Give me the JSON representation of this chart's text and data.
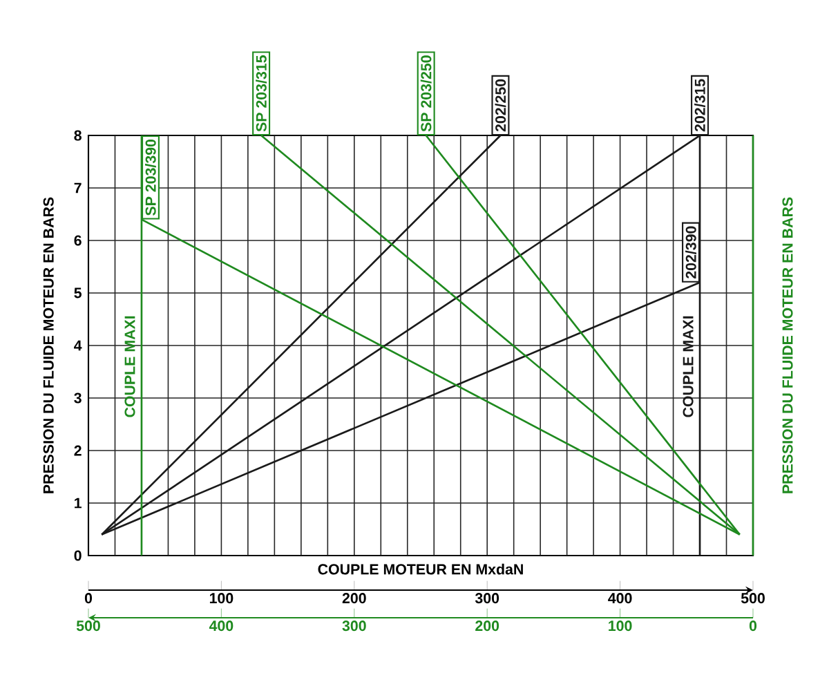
{
  "chart_data": {
    "type": "line",
    "xlabel": "COUPLE MOTEUR EN MxdaN",
    "ylabel": "PRESSION DU FLUIDE MOTEUR EN BARS",
    "y2label": "PRESSION DU FLUIDE MOTEUR EN BARS",
    "xlim": [
      0,
      500
    ],
    "xticks": [
      0,
      100,
      200,
      300,
      400,
      500
    ],
    "x2lim": [
      500,
      0
    ],
    "x2ticks": [
      500,
      400,
      300,
      200,
      100,
      0
    ],
    "ylim": [
      0,
      8
    ],
    "yticks": [
      0,
      1,
      2,
      3,
      4,
      5,
      6,
      7,
      8
    ],
    "grid": true,
    "marker": "none",
    "line_style": "solid",
    "series": [
      {
        "name": "202/250",
        "color": "#1a1a1a",
        "x": [
          10,
          310
        ],
        "values": [
          0.4,
          8
        ]
      },
      {
        "name": "202/315",
        "color": "#1a1a1a",
        "x": [
          10,
          460
        ],
        "values": [
          0.4,
          8
        ]
      },
      {
        "name": "202/390",
        "color": "#1a1a1a",
        "x": [
          10,
          460
        ],
        "values": [
          0.4,
          5.2
        ]
      },
      {
        "name": "SP 203/390",
        "color": "#1f8a1f",
        "axis": "x2",
        "x": [
          460,
          10
        ],
        "values": [
          6.4,
          0.4
        ]
      },
      {
        "name": "SP 203/315",
        "color": "#1f8a1f",
        "axis": "x2",
        "x": [
          370,
          10
        ],
        "values": [
          8,
          0.4
        ]
      },
      {
        "name": "SP 203/250",
        "color": "#1f8a1f",
        "axis": "x2",
        "x": [
          246,
          10
        ],
        "values": [
          8,
          0.4
        ]
      }
    ],
    "ref_lines": [
      {
        "axis": "x",
        "value": 460,
        "label": "COUPLE MAXI",
        "color": "#1a1a1a"
      },
      {
        "axis": "x2",
        "value": 460,
        "label": "COUPLE MAXI",
        "color": "#1f8a1f"
      }
    ]
  }
}
